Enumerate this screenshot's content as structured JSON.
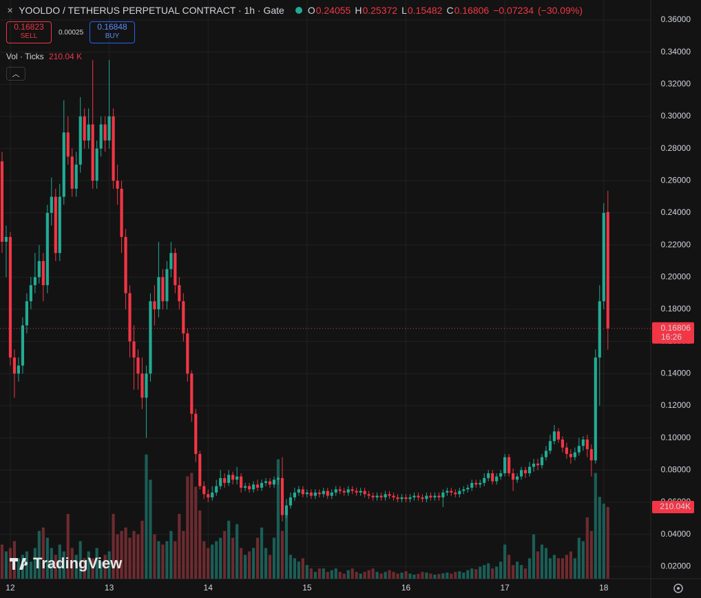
{
  "chart_data": {
    "type": "candlestick",
    "title": "YOOLDO / TETHERUS PERPETUAL CONTRACT · 1h · Gate",
    "up_color": "#22ab94",
    "down_color": "#f23645",
    "up_volume_color": "#1b5e57",
    "down_volume_color": "#6e2b30",
    "grid": true,
    "ylim": [
      0.0124,
      0.3724
    ],
    "yticks": [
      {
        "value": 0.02,
        "label": "0.02000"
      },
      {
        "value": 0.04,
        "label": "0.04000"
      },
      {
        "value": 0.06,
        "label": "0.06000"
      },
      {
        "value": 0.08,
        "label": "0.08000"
      },
      {
        "value": 0.1,
        "label": "0.10000"
      },
      {
        "value": 0.12,
        "label": "0.12000"
      },
      {
        "value": 0.14,
        "label": "0.14000"
      },
      {
        "value": 0.16,
        "label": "0.16000"
      },
      {
        "value": 0.18,
        "label": "0.18000"
      },
      {
        "value": 0.2,
        "label": "0.20000"
      },
      {
        "value": 0.22,
        "label": "0.22000"
      },
      {
        "value": 0.24,
        "label": "0.24000"
      },
      {
        "value": 0.26,
        "label": "0.26000"
      },
      {
        "value": 0.28,
        "label": "0.28000"
      },
      {
        "value": 0.3,
        "label": "0.30000"
      },
      {
        "value": 0.32,
        "label": "0.32000"
      },
      {
        "value": 0.34,
        "label": "0.34000"
      },
      {
        "value": 0.36,
        "label": "0.36000"
      }
    ],
    "xlim": [
      -0.5,
      157.4
    ],
    "xticks": [
      {
        "value": 2,
        "label": "12"
      },
      {
        "value": 26,
        "label": "13"
      },
      {
        "value": 50,
        "label": "14"
      },
      {
        "value": 74,
        "label": "15"
      },
      {
        "value": 98,
        "label": "16"
      },
      {
        "value": 122,
        "label": "17"
      },
      {
        "value": 146,
        "label": "18"
      }
    ],
    "volume_ylim": [
      0,
      420
    ],
    "open": [
      0.272,
      0.222,
      0.225,
      0.15,
      0.14,
      0.145,
      0.17,
      0.185,
      0.195,
      0.2,
      0.21,
      0.195,
      0.24,
      0.25,
      0.215,
      0.25,
      0.29,
      0.275,
      0.255,
      0.27,
      0.3,
      0.285,
      0.295,
      0.26,
      0.28,
      0.295,
      0.285,
      0.3,
      0.26,
      0.255,
      0.225,
      0.19,
      0.16,
      0.15,
      0.14,
      0.125,
      0.14,
      0.185,
      0.18,
      0.2,
      0.185,
      0.205,
      0.215,
      0.195,
      0.185,
      0.165,
      0.14,
      0.115,
      0.09,
      0.07,
      0.065,
      0.063,
      0.066,
      0.07,
      0.075,
      0.072,
      0.077,
      0.074,
      0.076,
      0.069,
      0.07,
      0.068,
      0.071,
      0.069,
      0.072,
      0.073,
      0.071,
      0.074,
      0.075,
      0.052,
      0.058,
      0.063,
      0.066,
      0.068,
      0.065,
      0.066,
      0.064,
      0.066,
      0.065,
      0.067,
      0.064,
      0.066,
      0.068,
      0.067,
      0.066,
      0.068,
      0.067,
      0.066,
      0.067,
      0.065,
      0.064,
      0.063,
      0.064,
      0.063,
      0.065,
      0.064,
      0.063,
      0.062,
      0.063,
      0.062,
      0.063,
      0.064,
      0.063,
      0.062,
      0.064,
      0.063,
      0.064,
      0.063,
      0.066,
      0.067,
      0.066,
      0.065,
      0.067,
      0.068,
      0.069,
      0.072,
      0.071,
      0.072,
      0.075,
      0.078,
      0.073,
      0.076,
      0.078,
      0.088,
      0.078,
      0.074,
      0.076,
      0.08,
      0.078,
      0.082,
      0.084,
      0.083,
      0.088,
      0.092,
      0.098,
      0.104,
      0.099,
      0.094,
      0.09,
      0.088,
      0.091,
      0.095,
      0.099,
      0.093,
      0.086,
      0.15,
      0.185,
      0.24055
    ],
    "high": [
      0.278,
      0.232,
      0.228,
      0.155,
      0.15,
      0.175,
      0.19,
      0.2,
      0.215,
      0.22,
      0.215,
      0.245,
      0.262,
      0.255,
      0.258,
      0.31,
      0.3,
      0.28,
      0.278,
      0.312,
      0.305,
      0.305,
      0.335,
      0.285,
      0.3,
      0.3,
      0.335,
      0.305,
      0.27,
      0.26,
      0.23,
      0.195,
      0.17,
      0.155,
      0.15,
      0.145,
      0.19,
      0.195,
      0.222,
      0.205,
      0.21,
      0.222,
      0.218,
      0.2,
      0.19,
      0.168,
      0.142,
      0.118,
      0.092,
      0.073,
      0.068,
      0.07,
      0.074,
      0.08,
      0.078,
      0.08,
      0.079,
      0.082,
      0.078,
      0.072,
      0.072,
      0.073,
      0.074,
      0.074,
      0.075,
      0.075,
      0.076,
      0.076,
      0.088,
      0.062,
      0.066,
      0.069,
      0.07,
      0.07,
      0.068,
      0.068,
      0.068,
      0.068,
      0.069,
      0.069,
      0.068,
      0.07,
      0.07,
      0.069,
      0.07,
      0.07,
      0.069,
      0.069,
      0.069,
      0.067,
      0.066,
      0.066,
      0.066,
      0.067,
      0.067,
      0.066,
      0.065,
      0.065,
      0.065,
      0.065,
      0.066,
      0.066,
      0.065,
      0.066,
      0.066,
      0.066,
      0.066,
      0.068,
      0.069,
      0.069,
      0.068,
      0.069,
      0.07,
      0.071,
      0.074,
      0.074,
      0.074,
      0.078,
      0.08,
      0.08,
      0.078,
      0.08,
      0.09,
      0.09,
      0.081,
      0.078,
      0.082,
      0.082,
      0.085,
      0.087,
      0.087,
      0.09,
      0.095,
      0.102,
      0.108,
      0.106,
      0.101,
      0.097,
      0.093,
      0.094,
      0.1,
      0.101,
      0.102,
      0.096,
      0.155,
      0.195,
      0.246,
      0.25372
    ],
    "low": [
      0.215,
      0.2,
      0.145,
      0.125,
      0.135,
      0.14,
      0.165,
      0.18,
      0.19,
      0.196,
      0.185,
      0.19,
      0.232,
      0.21,
      0.21,
      0.245,
      0.27,
      0.25,
      0.25,
      0.265,
      0.28,
      0.28,
      0.255,
      0.255,
      0.275,
      0.278,
      0.28,
      0.255,
      0.245,
      0.215,
      0.18,
      0.15,
      0.13,
      0.13,
      0.118,
      0.1,
      0.135,
      0.17,
      0.175,
      0.18,
      0.18,
      0.2,
      0.19,
      0.18,
      0.16,
      0.135,
      0.11,
      0.085,
      0.068,
      0.062,
      0.06,
      0.061,
      0.064,
      0.068,
      0.069,
      0.07,
      0.071,
      0.071,
      0.066,
      0.067,
      0.066,
      0.066,
      0.067,
      0.067,
      0.07,
      0.069,
      0.069,
      0.071,
      0.048,
      0.05,
      0.056,
      0.061,
      0.064,
      0.063,
      0.063,
      0.062,
      0.062,
      0.063,
      0.063,
      0.062,
      0.062,
      0.064,
      0.065,
      0.064,
      0.064,
      0.065,
      0.064,
      0.064,
      0.063,
      0.062,
      0.061,
      0.061,
      0.061,
      0.061,
      0.062,
      0.061,
      0.06,
      0.06,
      0.06,
      0.06,
      0.061,
      0.061,
      0.06,
      0.06,
      0.061,
      0.061,
      0.061,
      0.057,
      0.064,
      0.064,
      0.063,
      0.063,
      0.065,
      0.066,
      0.067,
      0.069,
      0.069,
      0.07,
      0.073,
      0.071,
      0.071,
      0.074,
      0.076,
      0.076,
      0.067,
      0.072,
      0.074,
      0.075,
      0.076,
      0.079,
      0.08,
      0.081,
      0.086,
      0.09,
      0.096,
      0.097,
      0.091,
      0.087,
      0.084,
      0.086,
      0.089,
      0.092,
      0.088,
      0.076,
      0.084,
      0.12,
      0.18,
      0.15482
    ],
    "close": [
      0.222,
      0.225,
      0.15,
      0.14,
      0.145,
      0.17,
      0.185,
      0.195,
      0.2,
      0.21,
      0.195,
      0.24,
      0.25,
      0.215,
      0.25,
      0.29,
      0.275,
      0.255,
      0.27,
      0.3,
      0.285,
      0.295,
      0.26,
      0.28,
      0.295,
      0.285,
      0.3,
      0.26,
      0.255,
      0.225,
      0.19,
      0.16,
      0.15,
      0.14,
      0.125,
      0.14,
      0.185,
      0.18,
      0.2,
      0.185,
      0.205,
      0.215,
      0.195,
      0.185,
      0.165,
      0.14,
      0.115,
      0.09,
      0.07,
      0.065,
      0.063,
      0.066,
      0.07,
      0.075,
      0.072,
      0.077,
      0.074,
      0.076,
      0.069,
      0.07,
      0.068,
      0.071,
      0.069,
      0.072,
      0.073,
      0.071,
      0.074,
      0.075,
      0.052,
      0.058,
      0.063,
      0.066,
      0.068,
      0.065,
      0.066,
      0.064,
      0.066,
      0.065,
      0.067,
      0.064,
      0.066,
      0.068,
      0.067,
      0.066,
      0.068,
      0.067,
      0.066,
      0.067,
      0.065,
      0.064,
      0.063,
      0.064,
      0.063,
      0.065,
      0.064,
      0.063,
      0.062,
      0.063,
      0.062,
      0.063,
      0.064,
      0.063,
      0.062,
      0.064,
      0.063,
      0.064,
      0.063,
      0.066,
      0.067,
      0.066,
      0.065,
      0.067,
      0.068,
      0.069,
      0.072,
      0.071,
      0.072,
      0.075,
      0.078,
      0.073,
      0.076,
      0.078,
      0.088,
      0.078,
      0.074,
      0.076,
      0.08,
      0.078,
      0.082,
      0.084,
      0.083,
      0.088,
      0.092,
      0.098,
      0.104,
      0.099,
      0.094,
      0.09,
      0.088,
      0.091,
      0.095,
      0.099,
      0.093,
      0.086,
      0.15,
      0.185,
      0.24,
      0.16806
    ],
    "volume": [
      100,
      80,
      90,
      110,
      60,
      70,
      80,
      50,
      90,
      140,
      150,
      120,
      90,
      70,
      100,
      80,
      190,
      90,
      70,
      110,
      60,
      80,
      60,
      90,
      50,
      70,
      80,
      190,
      130,
      140,
      150,
      120,
      140,
      130,
      170,
      364,
      290,
      130,
      110,
      100,
      110,
      140,
      110,
      190,
      140,
      300,
      310,
      270,
      200,
      110,
      90,
      100,
      110,
      120,
      140,
      170,
      120,
      160,
      90,
      70,
      80,
      90,
      120,
      150,
      90,
      70,
      120,
      350,
      140,
      190,
      70,
      60,
      50,
      60,
      40,
      30,
      20,
      30,
      30,
      20,
      25,
      30,
      20,
      15,
      25,
      30,
      20,
      15,
      20,
      25,
      30,
      20,
      15,
      20,
      25,
      20,
      15,
      18,
      22,
      15,
      12,
      14,
      20,
      18,
      15,
      12,
      14,
      16,
      18,
      15,
      20,
      22,
      18,
      25,
      30,
      28,
      35,
      40,
      45,
      30,
      35,
      50,
      100,
      70,
      40,
      50,
      40,
      30,
      60,
      130,
      80,
      100,
      90,
      60,
      70,
      60,
      60,
      70,
      80,
      60,
      120,
      110,
      180,
      140,
      310,
      240,
      220,
      210.04
    ],
    "volume_name": "Vol · Ticks",
    "volume_legend_label": "210.04 K",
    "volume_tag_label": "210.04K",
    "price_tag_countdown": "16:26"
  },
  "header": {
    "ohlc_letters": [
      "O",
      "H",
      "L",
      "C"
    ],
    "change": "−0.07234",
    "change_percent": "(−30.09%)"
  },
  "order_panel": {
    "sell_price": "0.16823",
    "sell_label": "SELL",
    "spread": "0.00025",
    "buy_price": "0.16848",
    "buy_label": "BUY"
  },
  "watermark": "TradingView"
}
